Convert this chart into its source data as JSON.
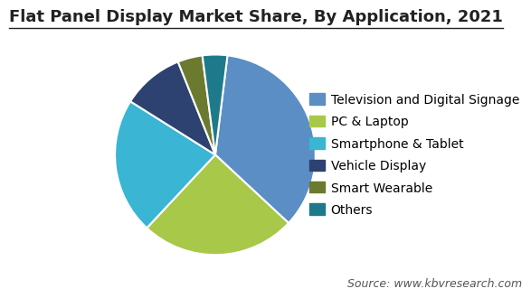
{
  "title": "Flat Panel Display Market Share, By Application, 2021",
  "labels": [
    "Television and Digital Signage",
    "PC & Laptop",
    "Smartphone & Tablet",
    "Vehicle Display",
    "Smart Wearable",
    "Others"
  ],
  "sizes": [
    35,
    25,
    22,
    10,
    4,
    4
  ],
  "colors": [
    "#5b8ec4",
    "#a8c84a",
    "#3ab5d4",
    "#2d4270",
    "#6b7a2e",
    "#1e7a8a"
  ],
  "startangle": 83,
  "source_text": "Source: www.kbvresearch.com",
  "background_color": "#ffffff",
  "title_fontsize": 13,
  "legend_fontsize": 10,
  "source_fontsize": 9
}
